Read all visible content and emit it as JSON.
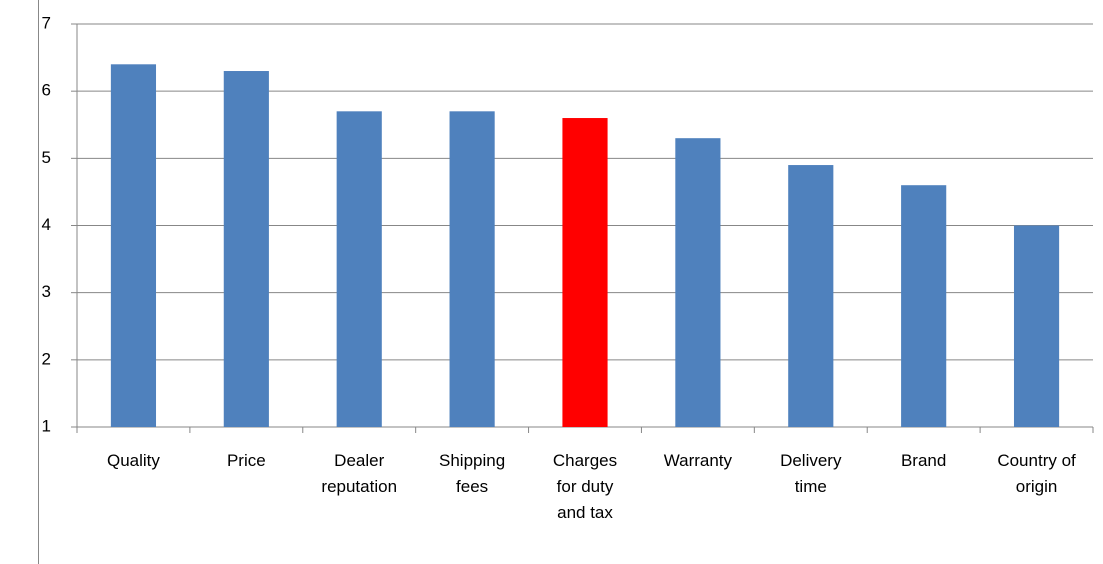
{
  "chart_data": {
    "type": "bar",
    "categories": [
      "Quality",
      "Price",
      "Dealer reputation",
      "Shipping fees",
      "Charges for duty and tax",
      "Warranty",
      "Delivery time",
      "Brand",
      "Country of origin"
    ],
    "values": [
      6.4,
      6.3,
      5.7,
      5.7,
      5.6,
      5.3,
      4.9,
      4.6,
      4.0
    ],
    "colors": [
      "#4f81bd",
      "#4f81bd",
      "#4f81bd",
      "#4f81bd",
      "#ff0000",
      "#4f81bd",
      "#4f81bd",
      "#4f81bd",
      "#4f81bd"
    ],
    "ylim": [
      1,
      7
    ],
    "yticks": [
      1,
      2,
      3,
      4,
      5,
      6,
      7
    ],
    "grid": true
  }
}
